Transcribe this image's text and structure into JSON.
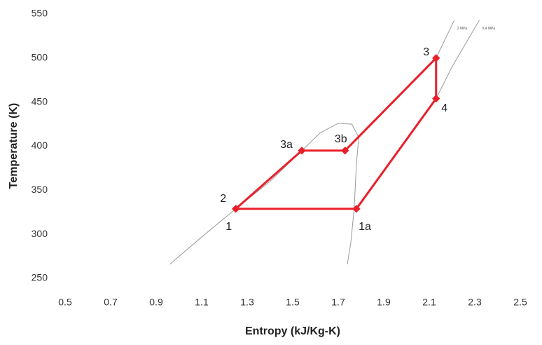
{
  "chart_data": {
    "type": "line",
    "x_label": "Entropy (kJ/Kg-K)",
    "y_label": "Temperature (K)",
    "xlim": [
      0.5,
      2.5
    ],
    "xticks": [
      0.5,
      0.7,
      0.9,
      1.1,
      1.3,
      1.5,
      1.7,
      1.9,
      2.1,
      2.3,
      2.5
    ],
    "ylim": [
      250,
      550
    ],
    "yticks": [
      250,
      300,
      350,
      400,
      450,
      500,
      550
    ],
    "series": [
      {
        "color": "#999999",
        "x": [
          0.96,
          1.1,
          1.25,
          1.4,
          1.54,
          1.62,
          1.7,
          1.76,
          1.79,
          1.78,
          1.77,
          1.755,
          1.74
        ],
        "values": [
          266,
          297,
          329,
          360,
          395,
          415,
          426,
          425,
          410,
          380,
          329,
          290,
          266
        ]
      },
      {
        "color": "#999999",
        "x": [
          1.25,
          1.77
        ],
        "values": [
          329,
          329
        ]
      },
      {
        "color": "#999999",
        "label": "2 MPa",
        "x": [
          1.73,
          2.13,
          2.21
        ],
        "values": [
          395,
          500,
          543
        ]
      },
      {
        "color": "#999999",
        "label": "0.4 MPa",
        "x": [
          1.78,
          2.13,
          2.2,
          2.32
        ],
        "values": [
          329,
          454,
          490,
          543
        ]
      },
      {
        "color": "#e8202a",
        "markers": true,
        "x": [
          1.25,
          1.54,
          1.73,
          2.13,
          2.13,
          1.78,
          1.25
        ],
        "values": [
          329,
          395,
          395,
          500,
          454,
          329,
          329
        ],
        "point_labels": [
          "2",
          "3a",
          "3b",
          "3",
          "4",
          "1a",
          "1"
        ]
      }
    ]
  }
}
